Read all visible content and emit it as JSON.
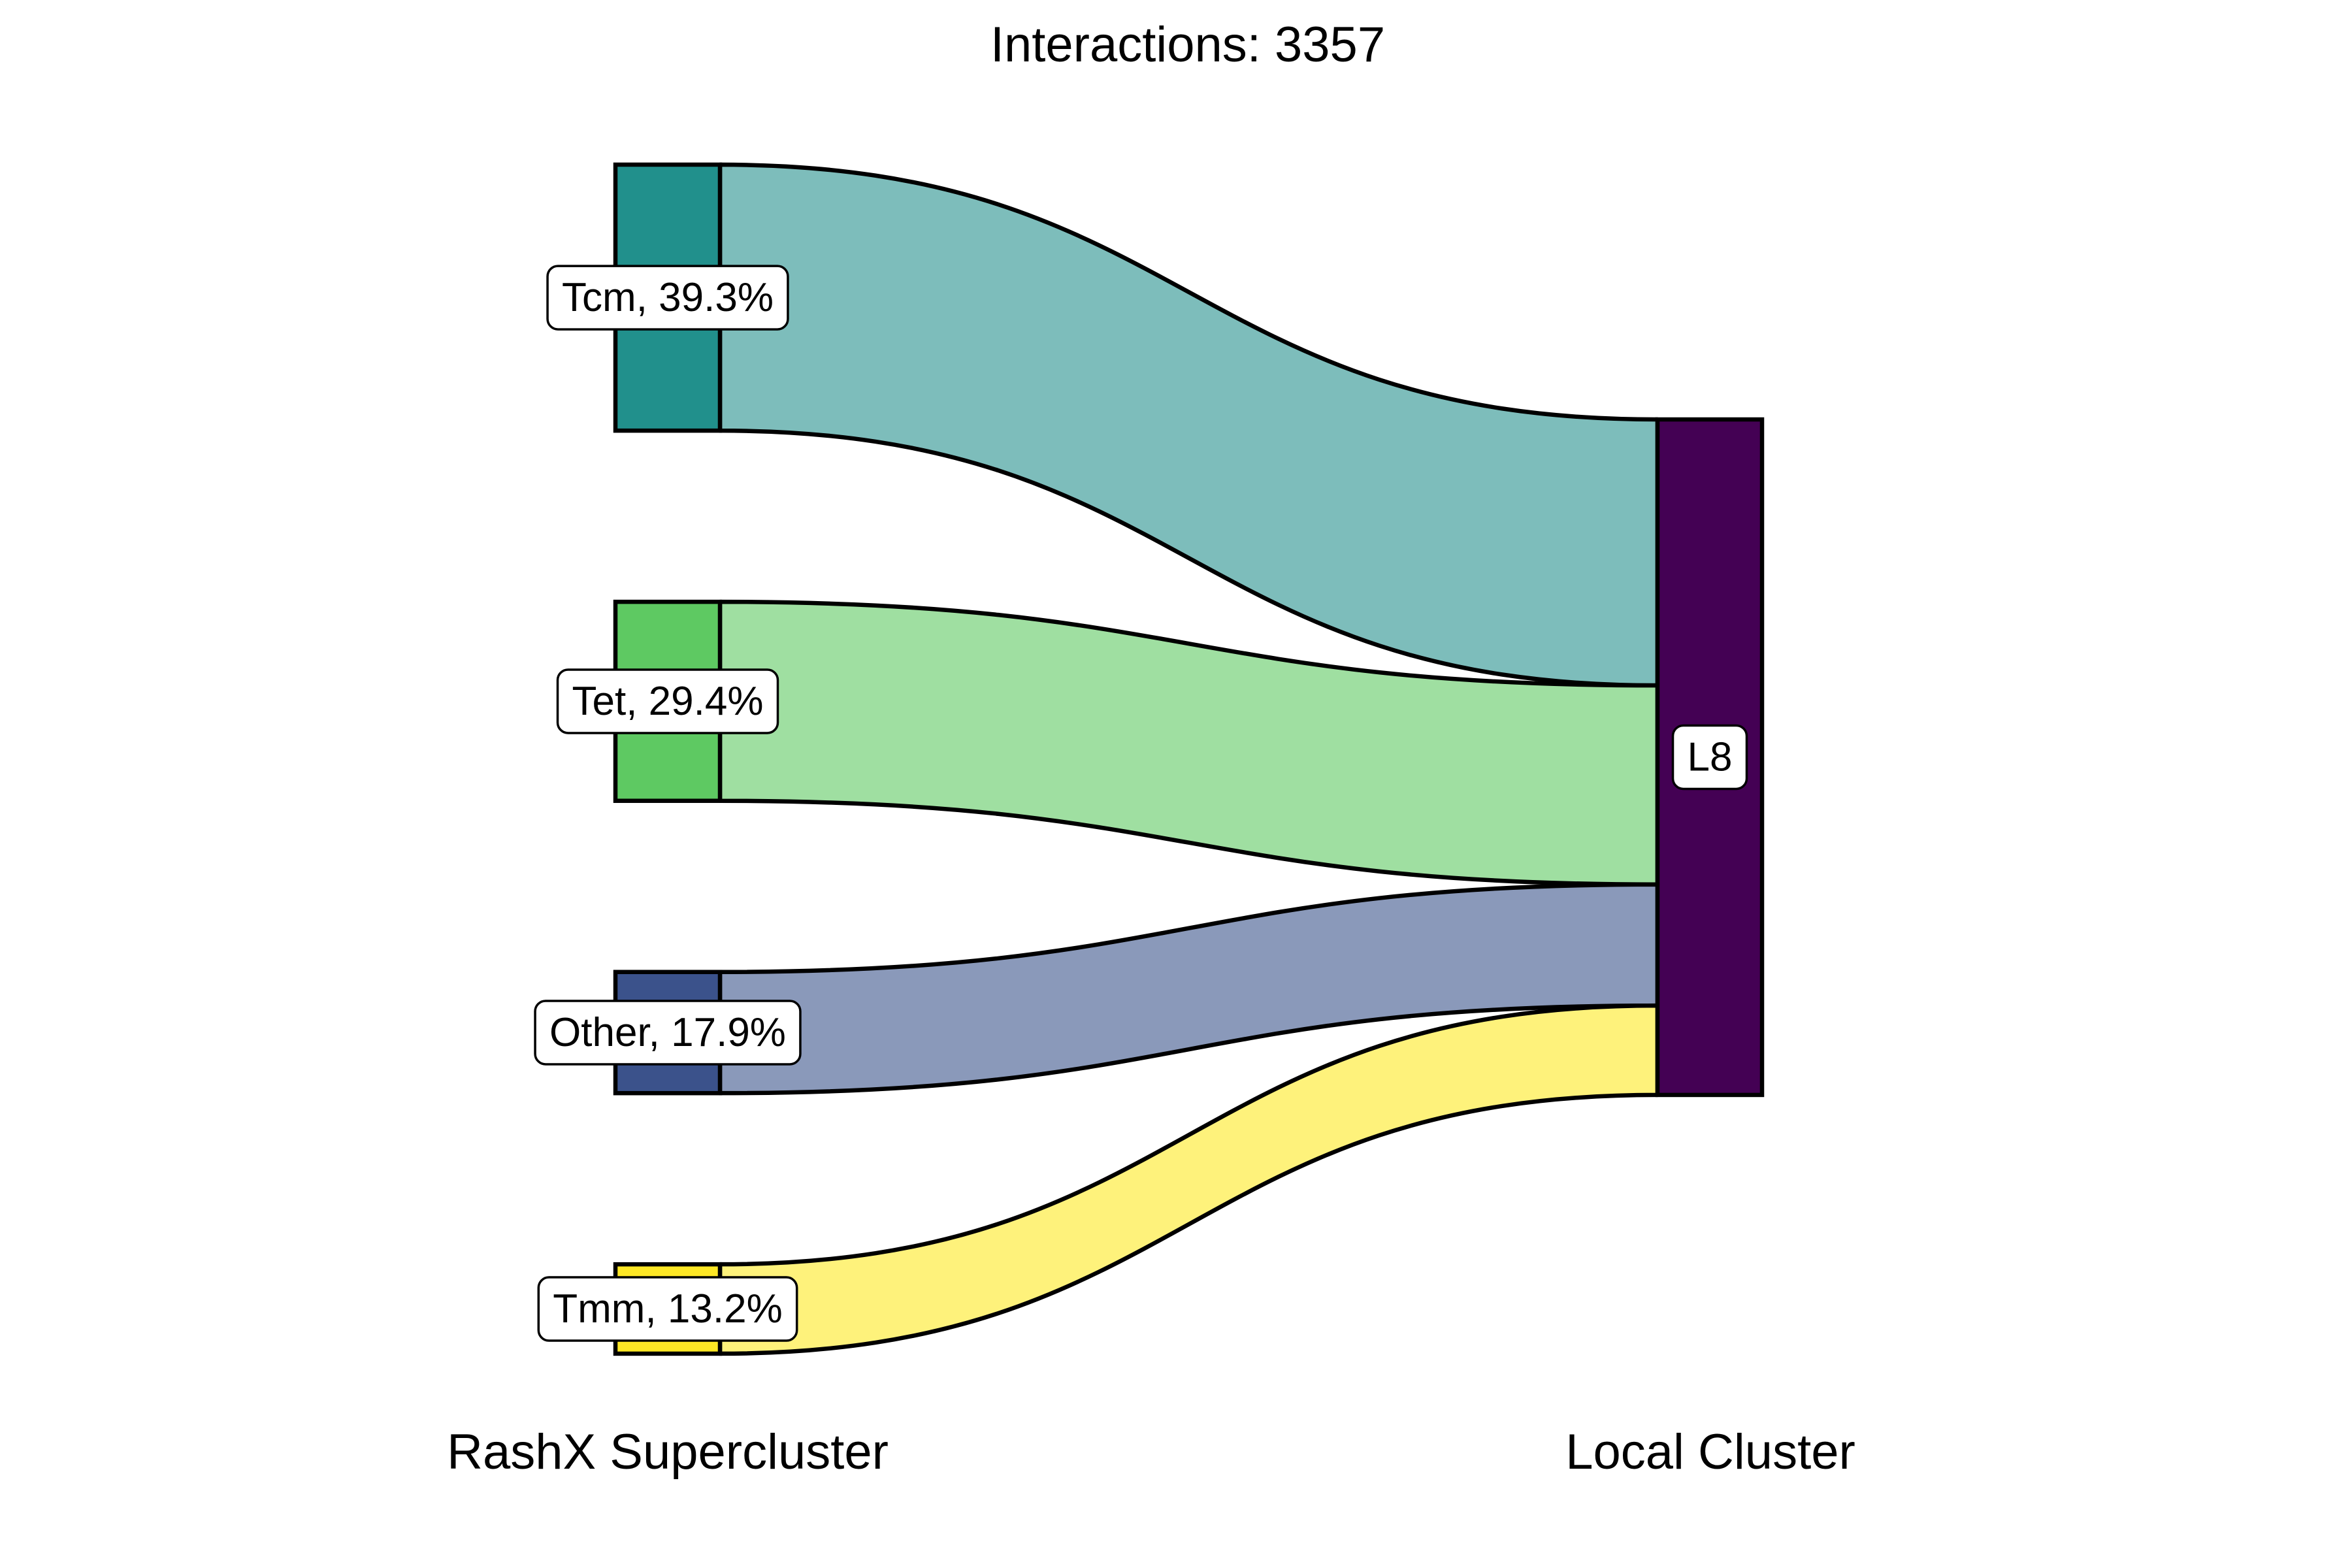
{
  "chart_data": {
    "type": "sankey",
    "title": "Interactions: 3357",
    "axis_labels": [
      "RashX Supercluster",
      "Local Cluster"
    ],
    "target": {
      "name": "L8",
      "color": "#440154"
    },
    "sources": [
      {
        "name": "Tcm",
        "percent": 39.3,
        "label": "Tcm, 39.3%",
        "color": "#21908C",
        "flow_color": "#7DBDBB"
      },
      {
        "name": "Tet",
        "percent": 29.4,
        "label": "Tet, 29.4%",
        "color": "#5EC962",
        "flow_color": "#9FDFA1"
      },
      {
        "name": "Other",
        "percent": 17.9,
        "label": "Other, 17.9%",
        "color": "#3B528B",
        "flow_color": "#8A99BA"
      },
      {
        "name": "Tmm",
        "percent": 13.2,
        "label": "Tmm, 13.2%",
        "color": "#FDE725",
        "flow_color": "#FEF27B"
      }
    ],
    "grid": false,
    "legend": "none"
  }
}
